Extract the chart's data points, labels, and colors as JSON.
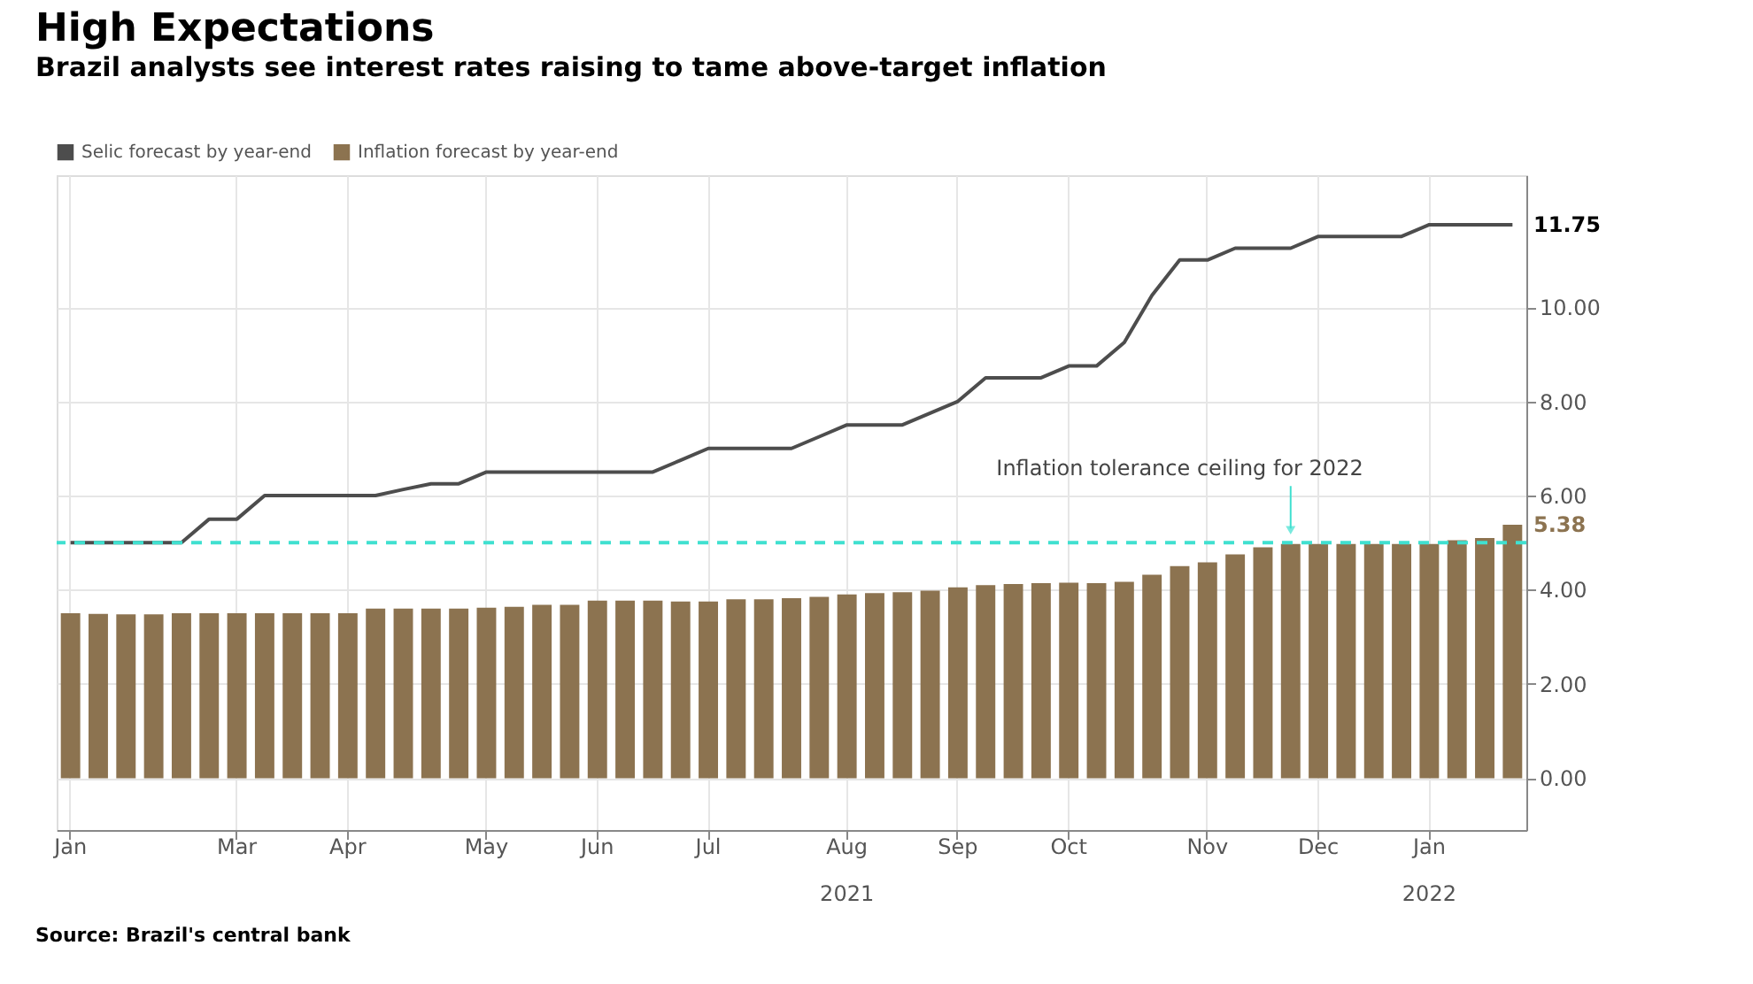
{
  "chart_data": {
    "type": "bar",
    "title": "High Expectations",
    "subtitle": "Brazil analysts see interest rates raising to tame above-target inflation",
    "categories": [
      "Jan",
      null,
      null,
      null,
      null,
      null,
      "Mar",
      null,
      null,
      null,
      "Apr",
      null,
      null,
      null,
      null,
      "May",
      null,
      null,
      null,
      "Jun",
      null,
      null,
      null,
      "Jul",
      null,
      null,
      null,
      null,
      "Aug",
      null,
      null,
      null,
      "Sep",
      null,
      null,
      null,
      "Oct",
      null,
      null,
      null,
      null,
      "Nov",
      null,
      null,
      null,
      "Dec",
      null,
      null,
      null,
      "Jan",
      null,
      null,
      null
    ],
    "series": [
      {
        "name": "Selic forecast by year-end",
        "type": "line",
        "color": "#4d4d4d",
        "values": [
          5.0,
          5.0,
          5.0,
          5.0,
          5.0,
          5.5,
          5.5,
          6.0,
          6.0,
          6.0,
          6.0,
          6.0,
          6.13,
          6.25,
          6.25,
          6.5,
          6.5,
          6.5,
          6.5,
          6.5,
          6.5,
          6.5,
          6.75,
          7.0,
          7.0,
          7.0,
          7.0,
          7.25,
          7.5,
          7.5,
          7.5,
          7.75,
          8.0,
          8.5,
          8.5,
          8.5,
          8.75,
          8.75,
          9.25,
          10.25,
          11.0,
          11.0,
          11.25,
          11.25,
          11.25,
          11.5,
          11.5,
          11.5,
          11.5,
          11.75,
          11.75,
          11.75,
          11.75
        ]
      },
      {
        "name": "Inflation forecast by year-end",
        "type": "bar",
        "color": "#8c7350",
        "values": [
          3.5,
          3.49,
          3.48,
          3.48,
          3.5,
          3.5,
          3.5,
          3.5,
          3.5,
          3.5,
          3.5,
          3.6,
          3.6,
          3.6,
          3.6,
          3.62,
          3.64,
          3.68,
          3.68,
          3.77,
          3.77,
          3.77,
          3.75,
          3.75,
          3.8,
          3.8,
          3.82,
          3.85,
          3.9,
          3.93,
          3.95,
          3.98,
          4.05,
          4.1,
          4.12,
          4.14,
          4.15,
          4.14,
          4.17,
          4.32,
          4.5,
          4.58,
          4.75,
          4.9,
          4.97,
          4.97,
          4.97,
          4.97,
          4.97,
          4.97,
          5.05,
          5.1,
          5.38
        ]
      }
    ],
    "ylim": [
      -1.1,
      12.8
    ],
    "yticks": [
      {
        "value": 0,
        "label": "0.00"
      },
      {
        "value": 2,
        "label": "2.00"
      },
      {
        "value": 4,
        "label": "4.00"
      },
      {
        "value": 6,
        "label": "6.00"
      },
      {
        "value": 8,
        "label": "8.00"
      },
      {
        "value": 10,
        "label": "10.00"
      }
    ],
    "ref_lines": [
      {
        "axis": "y",
        "value": 5.0,
        "label": "Inflation tolerance ceiling for 2022",
        "color": "#40e0d0",
        "line_style": "dashed"
      }
    ],
    "annotations": [
      "11.75",
      "5.38",
      "2021",
      "2022",
      "Source: Brazil's central bank"
    ],
    "legend": "top left",
    "grid": true
  }
}
